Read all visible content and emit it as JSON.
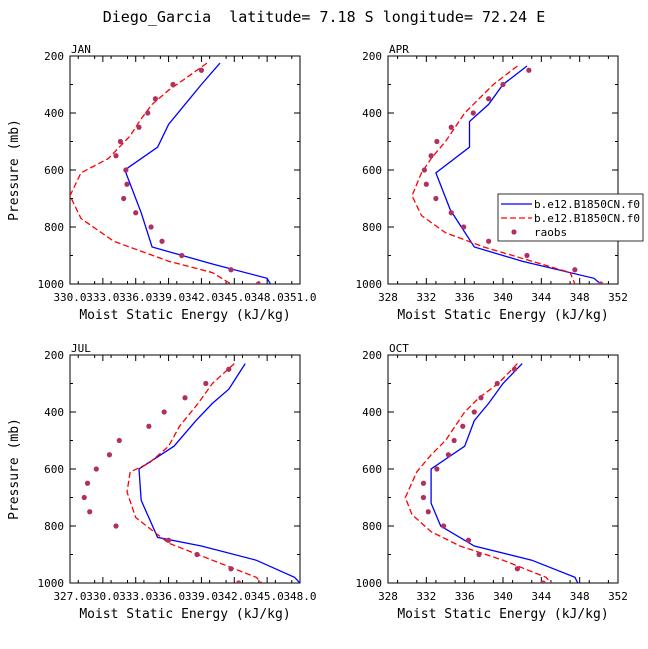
{
  "figure": {
    "title": "Diego_Garcia  latitude= 7.18 S longitude= 72.24 E"
  },
  "legend": {
    "panel": "APR",
    "placement": "right-middle",
    "entries": [
      {
        "label": "b.e12.B1850CN.f0",
        "color": "#0000ff",
        "style": "solid"
      },
      {
        "label": "b.e12.B1850CN.f0",
        "color": "#ff0000",
        "style": "dashed"
      },
      {
        "label": "raobs",
        "color": "#b03060",
        "style": "dots"
      }
    ]
  },
  "chart_data": [
    {
      "type": "line",
      "title": "JAN",
      "xlabel": "Moist Static Energy (kJ/kg)",
      "ylabel": "Pressure (mb)",
      "xlim": [
        330.0,
        351.0
      ],
      "ylim": [
        1000,
        200
      ],
      "xticks": [
        "330.0",
        "333.0",
        "336.0",
        "339.0",
        "342.0",
        "345.0",
        "348.0",
        "351.0"
      ],
      "yticks": [
        200,
        400,
        600,
        800,
        1000
      ],
      "series": [
        {
          "label": "b.e12.B1850CN.f0",
          "color": "#0000ff",
          "style": "solid",
          "points": [
            [
              343.7,
              225
            ],
            [
              342.0,
              300
            ],
            [
              340.5,
              370
            ],
            [
              339.0,
              440
            ],
            [
              338.0,
              520
            ],
            [
              335.0,
              600
            ],
            [
              336.5,
              750
            ],
            [
              337.5,
              870
            ],
            [
              343.0,
              930
            ],
            [
              348.0,
              980
            ],
            [
              348.3,
              1000
            ]
          ]
        },
        {
          "label": "b.e12.B1850CN.f0",
          "color": "#ff0000",
          "style": "dashed",
          "points": [
            [
              342.5,
              225
            ],
            [
              340.5,
              280
            ],
            [
              339.0,
              320
            ],
            [
              337.5,
              370
            ],
            [
              336.5,
              420
            ],
            [
              335.5,
              480
            ],
            [
              333.5,
              560
            ],
            [
              331.0,
              610
            ],
            [
              330.0,
              690
            ],
            [
              331.0,
              770
            ],
            [
              334.0,
              850
            ],
            [
              339.0,
              920
            ],
            [
              343.0,
              960
            ],
            [
              344.7,
              1000
            ]
          ]
        },
        {
          "label": "raobs",
          "color": "#b03060",
          "style": "dots",
          "points": [
            [
              342.0,
              250
            ],
            [
              339.4,
              300
            ],
            [
              337.8,
              350
            ],
            [
              337.1,
              400
            ],
            [
              336.3,
              450
            ],
            [
              334.6,
              500
            ],
            [
              334.2,
              550
            ],
            [
              335.1,
              600
            ],
            [
              335.2,
              650
            ],
            [
              334.9,
              700
            ],
            [
              336.0,
              750
            ],
            [
              337.4,
              800
            ],
            [
              338.4,
              850
            ],
            [
              340.2,
              900
            ],
            [
              344.7,
              950
            ],
            [
              347.2,
              1000
            ]
          ]
        }
      ]
    },
    {
      "type": "line",
      "title": "APR",
      "xlabel": "Moist Static Energy (kJ/kg)",
      "ylabel": "",
      "xlim": [
        328,
        352
      ],
      "ylim": [
        1000,
        200
      ],
      "xticks": [
        "328",
        "332",
        "336",
        "340",
        "344",
        "348",
        "352"
      ],
      "yticks": [
        200,
        400,
        600,
        800,
        1000
      ],
      "series": [
        {
          "label": "b.e12.B1850CN.f0",
          "color": "#0000ff",
          "style": "solid",
          "points": [
            [
              342.5,
              235
            ],
            [
              340.0,
              300
            ],
            [
              338.5,
              370
            ],
            [
              336.5,
              430
            ],
            [
              336.5,
              520
            ],
            [
              333.0,
              610
            ],
            [
              334.5,
              740
            ],
            [
              337.0,
              870
            ],
            [
              342.0,
              920
            ],
            [
              349.5,
              980
            ],
            [
              350.2,
              1000
            ]
          ]
        },
        {
          "label": "b.e12.B1850CN.f0",
          "color": "#ff0000",
          "style": "dashed",
          "points": [
            [
              341.5,
              235
            ],
            [
              339.0,
              300
            ],
            [
              337.5,
              350
            ],
            [
              336.0,
              400
            ],
            [
              335.0,
              450
            ],
            [
              334.0,
              500
            ],
            [
              332.5,
              560
            ],
            [
              331.5,
              610
            ],
            [
              330.5,
              690
            ],
            [
              331.5,
              760
            ],
            [
              334.0,
              820
            ],
            [
              338.0,
              870
            ],
            [
              343.0,
              920
            ],
            [
              347.0,
              960
            ],
            [
              347.5,
              1000
            ]
          ]
        },
        {
          "label": "raobs",
          "color": "#b03060",
          "style": "dots",
          "points": [
            [
              342.7,
              250
            ],
            [
              340.0,
              300
            ],
            [
              338.5,
              350
            ],
            [
              336.9,
              400
            ],
            [
              334.6,
              450
            ],
            [
              333.1,
              500
            ],
            [
              332.5,
              550
            ],
            [
              331.8,
              600
            ],
            [
              332.0,
              650
            ],
            [
              333.0,
              700
            ],
            [
              334.6,
              750
            ],
            [
              335.9,
              800
            ],
            [
              338.5,
              850
            ],
            [
              342.5,
              900
            ],
            [
              347.5,
              950
            ],
            [
              350.2,
              1000
            ]
          ]
        }
      ]
    },
    {
      "type": "line",
      "title": "JUL",
      "xlabel": "Moist Static Energy (kJ/kg)",
      "ylabel": "Pressure (mb)",
      "xlim": [
        327.0,
        348.0
      ],
      "ylim": [
        1000,
        200
      ],
      "xticks": [
        "327.0",
        "330.0",
        "333.0",
        "336.0",
        "339.0",
        "342.0",
        "345.0",
        "348.0"
      ],
      "yticks": [
        200,
        400,
        600,
        800,
        1000
      ],
      "series": [
        {
          "label": "b.e12.B1850CN.f0",
          "color": "#0000ff",
          "style": "solid",
          "points": [
            [
              343.0,
              230
            ],
            [
              341.5,
              320
            ],
            [
              340.0,
              370
            ],
            [
              338.5,
              430
            ],
            [
              336.5,
              520
            ],
            [
              333.3,
              600
            ],
            [
              333.5,
              710
            ],
            [
              335.0,
              840
            ],
            [
              339.0,
              870
            ],
            [
              344.0,
              920
            ],
            [
              347.5,
              980
            ],
            [
              348.0,
              1000
            ]
          ]
        },
        {
          "label": "b.e12.B1850CN.f0",
          "color": "#ff0000",
          "style": "dashed",
          "points": [
            [
              342.0,
              230
            ],
            [
              340.0,
              300
            ],
            [
              338.7,
              370
            ],
            [
              337.0,
              450
            ],
            [
              336.0,
              520
            ],
            [
              334.2,
              580
            ],
            [
              332.5,
              610
            ],
            [
              332.2,
              680
            ],
            [
              333.0,
              770
            ],
            [
              336.0,
              860
            ],
            [
              340.0,
              920
            ],
            [
              344.0,
              980
            ],
            [
              344.5,
              1000
            ]
          ]
        },
        {
          "label": "raobs",
          "color": "#b03060",
          "style": "dots",
          "points": [
            [
              341.5,
              250
            ],
            [
              339.4,
              300
            ],
            [
              337.5,
              350
            ],
            [
              335.6,
              400
            ],
            [
              334.2,
              450
            ],
            [
              331.5,
              500
            ],
            [
              330.6,
              550
            ],
            [
              329.4,
              600
            ],
            [
              328.6,
              650
            ],
            [
              328.3,
              700
            ],
            [
              328.8,
              750
            ],
            [
              331.2,
              800
            ],
            [
              336.0,
              850
            ],
            [
              338.6,
              900
            ],
            [
              341.7,
              950
            ],
            [
              342.4,
              1000
            ]
          ]
        }
      ]
    },
    {
      "type": "line",
      "title": "OCT",
      "xlabel": "Moist Static Energy (kJ/kg)",
      "ylabel": "",
      "xlim": [
        328,
        352
      ],
      "ylim": [
        1000,
        200
      ],
      "xticks": [
        "328",
        "332",
        "336",
        "340",
        "344",
        "348",
        "352"
      ],
      "yticks": [
        200,
        400,
        600,
        800,
        1000
      ],
      "series": [
        {
          "label": "b.e12.B1850CN.f0",
          "color": "#0000ff",
          "style": "solid",
          "points": [
            [
              342.0,
              230
            ],
            [
              340.0,
              300
            ],
            [
              338.5,
              370
            ],
            [
              337.0,
              430
            ],
            [
              336.0,
              520
            ],
            [
              332.5,
              600
            ],
            [
              332.5,
              720
            ],
            [
              333.5,
              800
            ],
            [
              337.0,
              870
            ],
            [
              343.0,
              920
            ],
            [
              347.5,
              980
            ],
            [
              347.8,
              1000
            ]
          ]
        },
        {
          "label": "b.e12.B1850CN.f0",
          "color": "#ff0000",
          "style": "dashed",
          "points": [
            [
              341.5,
              230
            ],
            [
              339.5,
              300
            ],
            [
              337.5,
              350
            ],
            [
              336.0,
              400
            ],
            [
              335.0,
              450
            ],
            [
              334.0,
              500
            ],
            [
              332.5,
              550
            ],
            [
              331.0,
              610
            ],
            [
              329.8,
              700
            ],
            [
              330.5,
              760
            ],
            [
              332.5,
              820
            ],
            [
              335.5,
              870
            ],
            [
              340.0,
              920
            ],
            [
              344.5,
              980
            ],
            [
              345.0,
              1000
            ]
          ]
        },
        {
          "label": "raobs",
          "color": "#b03060",
          "style": "dots",
          "points": [
            [
              341.2,
              250
            ],
            [
              339.4,
              300
            ],
            [
              337.7,
              350
            ],
            [
              337.0,
              400
            ],
            [
              335.8,
              450
            ],
            [
              334.9,
              500
            ],
            [
              334.3,
              550
            ],
            [
              333.1,
              600
            ],
            [
              331.7,
              650
            ],
            [
              331.7,
              700
            ],
            [
              332.2,
              750
            ],
            [
              333.8,
              800
            ],
            [
              336.4,
              850
            ],
            [
              337.5,
              900
            ],
            [
              341.5,
              950
            ],
            [
              344.2,
              1000
            ]
          ]
        }
      ]
    }
  ]
}
